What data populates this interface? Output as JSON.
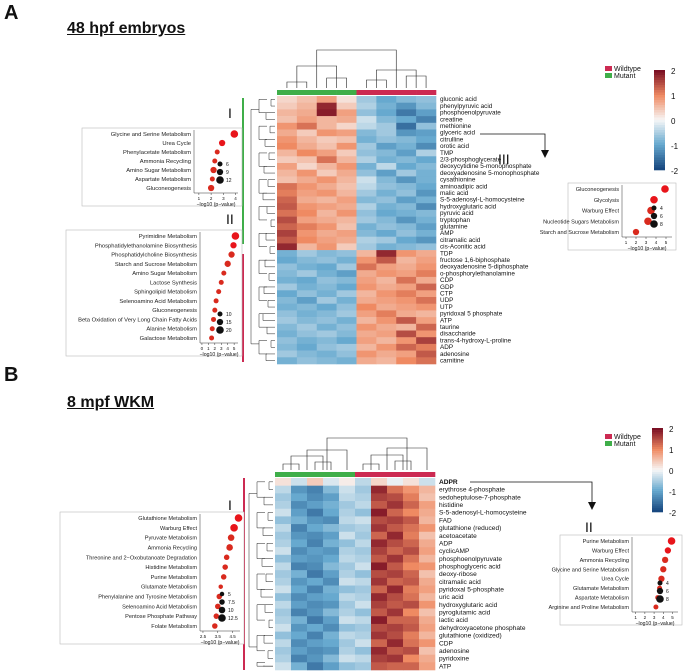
{
  "panel_a": {
    "letter": "A",
    "title": "48 hpf embryos",
    "legend": {
      "wildtype": "Wildtype",
      "mutant": "Mutant"
    },
    "scale": {
      "ticks": [
        "2",
        "1",
        "0",
        "-1",
        "-2"
      ]
    },
    "genotype_order": [
      "mutant",
      "mutant",
      "mutant",
      "mutant",
      "wildtype",
      "wildtype",
      "wildtype",
      "wildtype"
    ],
    "metabolites": [
      "gluconic acid",
      "phenylpyruvic acid",
      "phosphoenolpyruvate",
      "creatine",
      "methionine",
      "glyceric acid",
      "citrulline",
      "orotic acid",
      "TMP",
      "2/3-phosphoglycerate",
      "deoxycytidine 5-monophosphate",
      "deoxyadenosine 5-monophosphate",
      "cysathionine",
      "aminoadipic acid",
      "malic acid",
      "S-5-adenosyl-L-homocysteine",
      "hydroxyglutaric acid",
      "pyruvic acid",
      "tryptophan",
      "glutamine",
      "AMP",
      "citramalic acid",
      "cis-Aconitic acid",
      "TDP",
      "fructose 1,6-biphosphate",
      "deoxyadenosine 5-diphosphate",
      "o-phosphorylethanolamine",
      "CDP",
      "GDP",
      "CTP",
      "UDP",
      "UTP",
      "pyridoxal 5 phosphate",
      "ATP",
      "taurine",
      "disaccharide",
      "trans-4-hydroxy-L-proline",
      "ADP",
      "adenosine",
      "carnitine"
    ],
    "values": [
      [
        0.3,
        0.5,
        0.8,
        0.2,
        -0.6,
        -1.0,
        -0.8,
        -0.7
      ],
      [
        0.4,
        0.6,
        1.8,
        0.4,
        -0.5,
        -0.9,
        -1.2,
        -0.8
      ],
      [
        0.6,
        0.7,
        1.9,
        0.8,
        -0.7,
        -1.0,
        -1.5,
        -1.1
      ],
      [
        0.5,
        0.8,
        0.6,
        0.7,
        -0.3,
        -0.8,
        -1.0,
        -1.4
      ],
      [
        0.9,
        1.2,
        0.6,
        0.3,
        -0.4,
        -0.6,
        -1.6,
        -0.7
      ],
      [
        0.7,
        0.4,
        0.9,
        0.8,
        -0.8,
        -0.6,
        -1.2,
        -1.1
      ],
      [
        0.9,
        0.6,
        0.4,
        0.5,
        -0.9,
        -0.7,
        -0.8,
        -1.0
      ],
      [
        1.0,
        0.7,
        0.5,
        0.9,
        -0.6,
        -1.1,
        -0.9,
        -1.3
      ],
      [
        0.6,
        1.0,
        0.8,
        0.4,
        -0.7,
        -0.8,
        -1.1,
        -0.5
      ],
      [
        0.4,
        0.5,
        1.2,
        0.6,
        -0.5,
        -0.9,
        -0.8,
        -1.0
      ],
      [
        0.8,
        0.3,
        0.6,
        0.9,
        -0.9,
        -0.4,
        -1.0,
        -0.8
      ],
      [
        0.6,
        0.9,
        0.4,
        0.7,
        -0.7,
        -1.1,
        -0.6,
        -0.9
      ],
      [
        0.5,
        0.7,
        0.9,
        0.6,
        -0.3,
        -0.8,
        -1.2,
        -0.9
      ],
      [
        1.2,
        0.9,
        0.7,
        0.5,
        -0.4,
        -0.7,
        -0.8,
        -1.0
      ],
      [
        1.1,
        0.8,
        0.9,
        0.6,
        -0.6,
        -0.9,
        -0.7,
        -1.2
      ],
      [
        1.3,
        0.7,
        0.6,
        0.8,
        -0.8,
        -0.7,
        -1.1,
        -0.9
      ],
      [
        1.4,
        0.9,
        0.8,
        0.7,
        -0.5,
        -0.9,
        -0.8,
        -1.3
      ],
      [
        1.2,
        1.0,
        0.6,
        0.9,
        -0.7,
        -1.0,
        -0.9,
        -0.8
      ],
      [
        1.5,
        0.8,
        0.7,
        0.6,
        -0.6,
        -0.8,
        -1.2,
        -0.9
      ],
      [
        1.3,
        1.1,
        0.9,
        0.5,
        -0.9,
        -0.7,
        -0.8,
        -1.1
      ],
      [
        1.6,
        0.9,
        0.7,
        0.8,
        -0.8,
        -1.0,
        -0.7,
        -0.9
      ],
      [
        1.4,
        1.0,
        0.8,
        0.7,
        -0.5,
        -0.6,
        -1.0,
        -1.2
      ],
      [
        1.8,
        0.6,
        0.9,
        0.4,
        -0.6,
        -0.9,
        -0.8,
        -0.7
      ],
      [
        -0.9,
        -0.6,
        -0.8,
        -0.7,
        0.6,
        1.8,
        0.9,
        0.7
      ],
      [
        -1.0,
        -0.8,
        -0.7,
        -0.9,
        0.9,
        1.4,
        0.6,
        0.8
      ],
      [
        -0.7,
        -0.9,
        -1.0,
        -0.6,
        1.2,
        0.8,
        0.7,
        0.9
      ],
      [
        -0.8,
        -0.6,
        -0.9,
        -1.1,
        0.7,
        0.9,
        0.8,
        1.1
      ],
      [
        -0.9,
        -1.0,
        -0.7,
        -0.8,
        0.8,
        0.6,
        1.2,
        0.7
      ],
      [
        -0.6,
        -0.9,
        -0.8,
        -1.0,
        0.9,
        0.7,
        0.8,
        1.3
      ],
      [
        -1.0,
        -0.7,
        -0.9,
        -0.6,
        0.6,
        0.9,
        1.1,
        0.8
      ],
      [
        -0.8,
        -1.1,
        -0.6,
        -0.9,
        0.7,
        0.8,
        0.9,
        1.2
      ],
      [
        -0.9,
        -0.8,
        -1.0,
        -0.7,
        1.0,
        0.7,
        0.8,
        0.9
      ],
      [
        -0.7,
        -0.9,
        -0.8,
        -0.6,
        0.8,
        1.1,
        0.7,
        0.6
      ],
      [
        -0.6,
        -0.8,
        -0.7,
        -0.9,
        0.6,
        0.9,
        1.4,
        0.8
      ],
      [
        -0.8,
        -0.6,
        -0.9,
        -0.7,
        0.9,
        0.7,
        0.6,
        1.3
      ],
      [
        -0.9,
        -0.7,
        -0.6,
        -0.8,
        0.7,
        0.8,
        1.5,
        0.9
      ],
      [
        -0.7,
        -0.9,
        -0.8,
        -1.0,
        0.8,
        0.6,
        0.9,
        1.6
      ],
      [
        -0.8,
        -1.0,
        -0.7,
        -0.6,
        0.6,
        0.9,
        1.3,
        1.1
      ],
      [
        -0.6,
        -0.8,
        -0.9,
        -0.7,
        0.9,
        0.7,
        0.8,
        1.4
      ],
      [
        -0.9,
        -0.7,
        -0.8,
        -0.9,
        0.7,
        0.6,
        1.0,
        1.2
      ]
    ],
    "groups": {
      "top": "I",
      "bottom": "II",
      "right": "III"
    },
    "arrow_from": "glyceric acid",
    "insets": [
      {
        "id": "I",
        "label": "I",
        "xlabel": "−log10 (p−value)",
        "xticks": [
          1,
          2,
          3,
          4
        ],
        "xmin": 0.6,
        "xmax": 4.2,
        "pathways": [
          {
            "name": "Glycine and Serine Metabolism",
            "value": 3.9,
            "size": 12
          },
          {
            "name": "Urea Cycle",
            "value": 2.9,
            "size": 9
          },
          {
            "name": "Phenylacetate Metabolism",
            "value": 2.5,
            "size": 6
          },
          {
            "name": "Ammonia Recycling",
            "value": 2.3,
            "size": 6
          },
          {
            "name": "Amino Sugar Metabolism",
            "value": 2.2,
            "size": 9
          },
          {
            "name": "Aspartate Metabolism",
            "value": 2.1,
            "size": 6
          },
          {
            "name": "Gluconeogenesis",
            "value": 2.0,
            "size": 9
          }
        ],
        "size_legend": [
          6,
          9,
          12
        ]
      },
      {
        "id": "II",
        "label": "II",
        "xlabel": "−log10 (p−value)",
        "xticks": [
          0,
          1,
          2,
          3,
          4,
          5
        ],
        "xmin": -0.3,
        "xmax": 5.6,
        "pathways": [
          {
            "name": "Pyrimidine Metabolism",
            "value": 5.2,
            "size": 20
          },
          {
            "name": "Phosphatidylethanolamine Biosynthesis",
            "value": 4.9,
            "size": 15
          },
          {
            "name": "Phosphatidylcholine Biosynthesis",
            "value": 4.6,
            "size": 15
          },
          {
            "name": "Starch and Sucrose Metabolism",
            "value": 4.0,
            "size": 15
          },
          {
            "name": "Amino Sugar Metabolism",
            "value": 3.4,
            "size": 10
          },
          {
            "name": "Lactose Synthesis",
            "value": 3.0,
            "size": 10
          },
          {
            "name": "Sphingolipid Metabolism",
            "value": 2.6,
            "size": 10
          },
          {
            "name": "Selenoamino Acid Metabolism",
            "value": 2.2,
            "size": 10
          },
          {
            "name": "Gluconeogenesis",
            "value": 2.0,
            "size": 10
          },
          {
            "name": "Beta Oxidation of Very Long Chain Fatty Acids",
            "value": 1.8,
            "size": 10
          },
          {
            "name": "Alanine Metabolism",
            "value": 1.6,
            "size": 10
          },
          {
            "name": "Galactose Metabolism",
            "value": 1.5,
            "size": 10
          }
        ],
        "size_legend": [
          10,
          15,
          20
        ]
      },
      {
        "id": "III",
        "label": "III",
        "xlabel": "−log10 (p−value)",
        "xticks": [
          1,
          2,
          3,
          4,
          5
        ],
        "xmin": 0.6,
        "xmax": 5.6,
        "pathways": [
          {
            "name": "Gluconeogenesis",
            "value": 4.9,
            "size": 8
          },
          {
            "name": "Glycolysis",
            "value": 3.8,
            "size": 8
          },
          {
            "name": "Warburg Effect",
            "value": 3.5,
            "size": 8
          },
          {
            "name": "Nucleotide Sugars Metabolism",
            "value": 3.2,
            "size": 8
          },
          {
            "name": "Starch and Sucrose Metabolism",
            "value": 2.0,
            "size": 6
          }
        ],
        "size_legend": [
          4,
          6,
          8
        ]
      }
    ]
  },
  "panel_b": {
    "letter": "B",
    "title": "8 mpf WKM",
    "legend": {
      "wildtype": "Wildtype",
      "mutant": "Mutant"
    },
    "scale": {
      "ticks": [
        "2",
        "1",
        "0",
        "-1",
        "-2"
      ]
    },
    "genotype_order": [
      "mutant",
      "mutant",
      "mutant",
      "mutant",
      "mutant",
      "wildtype",
      "wildtype",
      "wildtype",
      "wildtype",
      "wildtype"
    ],
    "metabolites": [
      "ADPR",
      "erythrose 4-phosphate",
      "sedoheptulose-7-phosphate",
      "histidine",
      "S-5-adenosyl-L-homocysteine",
      "FAD",
      "glutathione (reduced)",
      "acetoacetate",
      "ADP",
      "cyclicAMP",
      "phosphoenolpyruvate",
      "phosphoglyceric acid",
      "deoxy-ribose",
      "citramalic acid",
      "pyridoxal 5-phosphate",
      "uric acid",
      "hydroxyglutaric acid",
      "pyroglutamic acid",
      "lactic acid",
      "dehydroxyacetone phosphate",
      "glutathione (oxidized)",
      "CDP",
      "adenosine",
      "pyridoxine",
      "ATP"
    ],
    "values": [
      [
        0.2,
        -0.3,
        0.4,
        -0.2,
        0.1,
        -0.4,
        0.3,
        -0.1,
        0.2,
        -0.3
      ],
      [
        -0.4,
        -1.2,
        -1.4,
        -0.8,
        -0.3,
        -0.6,
        1.8,
        1.2,
        0.9,
        0.6
      ],
      [
        -0.6,
        -1.0,
        -1.3,
        -1.1,
        -0.4,
        -0.5,
        1.6,
        1.5,
        1.1,
        0.5
      ],
      [
        -0.5,
        -1.3,
        -1.1,
        -0.9,
        -0.6,
        -0.4,
        1.4,
        1.7,
        1.3,
        0.8
      ],
      [
        -0.3,
        -1.1,
        -1.5,
        -1.0,
        -0.5,
        -0.7,
        1.9,
        1.3,
        1.0,
        0.7
      ],
      [
        -0.7,
        -0.9,
        -1.2,
        -1.3,
        -0.4,
        -0.3,
        1.5,
        1.6,
        1.4,
        0.6
      ],
      [
        -0.4,
        -1.4,
        -1.0,
        -0.8,
        -0.6,
        -0.5,
        1.7,
        1.4,
        1.2,
        0.9
      ],
      [
        -0.6,
        -1.2,
        -1.3,
        -1.1,
        -0.3,
        -0.6,
        1.3,
        1.8,
        1.1,
        0.5
      ],
      [
        -0.5,
        -1.0,
        -1.4,
        -0.9,
        -0.7,
        -0.4,
        1.8,
        1.5,
        1.3,
        0.7
      ],
      [
        -0.3,
        -1.3,
        -1.1,
        -1.2,
        -0.5,
        -0.6,
        1.6,
        1.3,
        1.5,
        0.8
      ],
      [
        -0.7,
        -1.1,
        -1.2,
        -1.0,
        -0.4,
        -0.5,
        1.4,
        1.7,
        1.2,
        0.6
      ],
      [
        -0.4,
        -1.4,
        -1.3,
        -0.8,
        -0.6,
        -0.3,
        1.9,
        1.4,
        1.0,
        0.9
      ],
      [
        -0.6,
        -0.9,
        -1.5,
        -1.1,
        -0.5,
        -0.7,
        1.5,
        1.6,
        1.3,
        0.5
      ],
      [
        -0.5,
        -1.2,
        -1.0,
        -1.3,
        -0.3,
        -0.4,
        1.7,
        1.3,
        1.4,
        0.7
      ],
      [
        -0.3,
        -1.0,
        -1.4,
        -0.9,
        -0.7,
        -0.6,
        1.3,
        1.8,
        1.1,
        0.8
      ],
      [
        -0.7,
        -1.3,
        -1.1,
        -1.0,
        -0.4,
        -0.5,
        1.8,
        1.5,
        1.2,
        0.6
      ],
      [
        -0.4,
        -1.1,
        -1.3,
        -1.2,
        -0.6,
        -0.3,
        1.6,
        1.4,
        1.5,
        0.9
      ],
      [
        -0.6,
        -1.4,
        -1.2,
        -0.8,
        -0.5,
        -0.7,
        1.4,
        1.7,
        1.0,
        0.5
      ],
      [
        -0.5,
        -0.9,
        -1.5,
        -1.1,
        -0.3,
        -0.4,
        1.9,
        1.3,
        1.3,
        0.7
      ],
      [
        -0.3,
        -1.2,
        -1.0,
        -1.3,
        -0.7,
        -0.6,
        1.5,
        1.6,
        1.4,
        0.8
      ],
      [
        -0.7,
        -1.0,
        -1.4,
        -0.9,
        -0.4,
        -0.5,
        1.7,
        1.5,
        1.1,
        0.6
      ],
      [
        -0.4,
        -1.3,
        -1.1,
        -1.0,
        -0.6,
        -0.3,
        1.3,
        1.8,
        1.2,
        0.9
      ],
      [
        -0.6,
        -1.1,
        -1.3,
        -1.2,
        -0.5,
        -0.7,
        1.8,
        1.4,
        1.5,
        0.5
      ],
      [
        -0.5,
        -1.4,
        -1.2,
        -0.8,
        -0.3,
        -0.4,
        1.6,
        1.7,
        1.0,
        0.7
      ],
      [
        -0.3,
        -0.9,
        -1.5,
        -1.1,
        -0.7,
        -0.6,
        1.4,
        1.3,
        1.3,
        0.8
      ]
    ],
    "groups": {
      "left": "I",
      "right": "II"
    },
    "arrow_from": "ADPR",
    "insets": [
      {
        "id": "I",
        "label": "I",
        "xlabel": "−log10 (p−value)",
        "xticks": [
          2.5,
          3.5,
          4.5
        ],
        "xmin": 2.3,
        "xmax": 5.0,
        "pathways": [
          {
            "name": "Glutathione Metabolism",
            "value": 4.9,
            "size": 12.5
          },
          {
            "name": "Warburg Effect",
            "value": 4.6,
            "size": 12.5
          },
          {
            "name": "Pyruvate Metabolism",
            "value": 4.4,
            "size": 10.0
          },
          {
            "name": "Ammonia Recycling",
            "value": 4.3,
            "size": 10.0
          },
          {
            "name": "Threonine and 2−Oxobutanoate Degradation",
            "value": 4.1,
            "size": 7.5
          },
          {
            "name": "Histidine Metabolism",
            "value": 4.0,
            "size": 7.5
          },
          {
            "name": "Purine Metabolism",
            "value": 3.9,
            "size": 7.5
          },
          {
            "name": "Glutamate Metabolism",
            "value": 3.7,
            "size": 5.0
          },
          {
            "name": "Phenylalanine and Tyrosine Metabolism",
            "value": 3.6,
            "size": 7.5
          },
          {
            "name": "Selenoamino Acid Metabolism",
            "value": 3.5,
            "size": 7.5
          },
          {
            "name": "Pentose Phosphate Pathway",
            "value": 3.4,
            "size": 7.5
          },
          {
            "name": "Folate Metabolism",
            "value": 3.3,
            "size": 7.5
          }
        ],
        "size_legend": [
          5.0,
          7.5,
          10.0,
          12.5
        ]
      },
      {
        "id": "II",
        "label": "II",
        "xlabel": "−log10 (p−value)",
        "xticks": [
          1,
          2,
          3,
          4,
          5
        ],
        "xmin": 0.6,
        "xmax": 5.6,
        "pathways": [
          {
            "name": "Purine Metabolism",
            "value": 4.9,
            "size": 8
          },
          {
            "name": "Warburg Effect",
            "value": 4.5,
            "size": 6
          },
          {
            "name": "Ammonia Recycling",
            "value": 4.2,
            "size": 6
          },
          {
            "name": "Glycine and Serine Metabolism",
            "value": 4.0,
            "size": 6
          },
          {
            "name": "Urea Cycle",
            "value": 3.8,
            "size": 6
          },
          {
            "name": "Glutamate Metabolism",
            "value": 3.6,
            "size": 4
          },
          {
            "name": "Aspartate Metabolism",
            "value": 3.4,
            "size": 4
          },
          {
            "name": "Arginine and Proline Metabolism",
            "value": 3.2,
            "size": 4
          }
        ],
        "size_legend": [
          4,
          6,
          8
        ]
      }
    ]
  }
}
